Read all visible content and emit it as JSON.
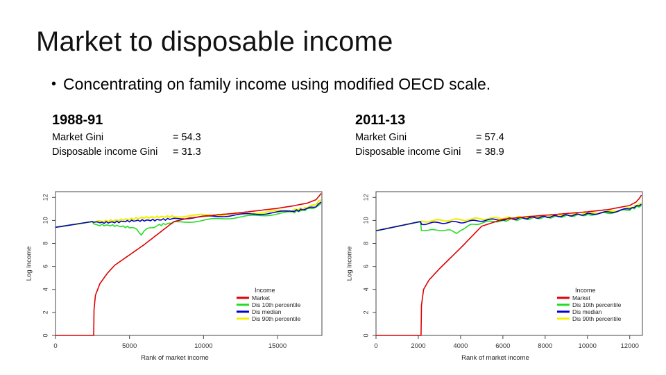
{
  "slide": {
    "title": "Market to disposable income",
    "bullet": "Concentrating on family income using modified OECD scale."
  },
  "panels": [
    {
      "period": "1988-91",
      "market_label": "Market Gini",
      "market_value": "= 54.3",
      "disposable_label": "Disposable income Gini",
      "disposable_value": "= 31.3"
    },
    {
      "period": "2011-13",
      "market_label": "Market Gini",
      "market_value": "= 57.4",
      "disposable_label": "Disposable income Gini",
      "disposable_value": "= 38.9"
    }
  ],
  "colors": {
    "market": "#dd0000",
    "p10": "#22dd22",
    "median": "#0000cc",
    "p90": "#f0f000"
  },
  "chart_data": [
    {
      "type": "line",
      "title": "",
      "xlabel": "Rank of market income",
      "ylabel": "Log Income",
      "xlim": [
        0,
        18000
      ],
      "ylim": [
        0,
        12.5
      ],
      "x_ticks": [
        0,
        5000,
        10000,
        15000
      ],
      "x_tick_labels": [
        "0",
        "5000",
        "10000",
        "15000"
      ],
      "y_ticks": [
        0,
        2,
        4,
        6,
        8,
        10,
        12
      ],
      "y_tick_labels": [
        "0",
        "2",
        "4",
        "6",
        "8",
        "10",
        "12"
      ],
      "legend_title": "Income",
      "legend_position": "bottom-right",
      "market_zero_until": 2600,
      "series": [
        {
          "name": "Market",
          "color_key": "market",
          "x": [
            0,
            2580,
            2600,
            2700,
            3000,
            3500,
            4000,
            5000,
            6000,
            7000,
            8000,
            9000,
            10000,
            11000,
            12000,
            13000,
            14000,
            15000,
            16000,
            17000,
            17600,
            17800,
            17950
          ],
          "y": [
            0,
            0,
            2.2,
            3.5,
            4.5,
            5.4,
            6.1,
            7.0,
            7.9,
            8.9,
            9.9,
            10.2,
            10.35,
            10.5,
            10.6,
            10.75,
            10.9,
            11.05,
            11.25,
            11.5,
            11.8,
            12.1,
            12.35
          ]
        },
        {
          "name": "Dis 10th percentile",
          "color_key": "p10",
          "x": [
            0,
            2500,
            2600,
            3000,
            4000,
            5000,
            5500,
            5800,
            6000,
            6500,
            7000,
            8000,
            10000,
            12000,
            14000,
            16000,
            17000,
            17600,
            17950
          ],
          "y": [
            9.4,
            9.9,
            9.6,
            9.6,
            9.55,
            9.4,
            9.2,
            8.8,
            9.1,
            9.4,
            9.6,
            9.8,
            10.0,
            10.25,
            10.45,
            10.7,
            10.95,
            11.2,
            11.5
          ]
        },
        {
          "name": "Dis median",
          "color_key": "median",
          "x": [
            0,
            2500,
            2600,
            3000,
            4000,
            5000,
            6000,
            7000,
            8000,
            10000,
            12000,
            14000,
            16000,
            17000,
            17600,
            17950
          ],
          "y": [
            9.4,
            9.9,
            9.8,
            9.8,
            9.85,
            9.95,
            10.0,
            10.05,
            10.15,
            10.3,
            10.45,
            10.6,
            10.8,
            11.0,
            11.25,
            11.6
          ]
        },
        {
          "name": "Dis 90th percentile",
          "color_key": "p90",
          "x": [
            0,
            2500,
            2600,
            3000,
            4000,
            5000,
            6000,
            7000,
            8000,
            10000,
            12000,
            14000,
            16000,
            17000,
            17600,
            17950
          ],
          "y": [
            9.4,
            9.9,
            9.85,
            9.9,
            10.0,
            10.1,
            10.25,
            10.3,
            10.35,
            10.45,
            10.55,
            10.7,
            10.9,
            11.1,
            11.4,
            11.8
          ]
        }
      ]
    },
    {
      "type": "line",
      "title": "",
      "xlabel": "Rank of market income",
      "ylabel": "Log Income",
      "xlim": [
        0,
        12600
      ],
      "ylim": [
        0,
        12.5
      ],
      "x_ticks": [
        0,
        2000,
        4000,
        6000,
        8000,
        10000,
        12000
      ],
      "x_tick_labels": [
        "0",
        "2000",
        "4000",
        "6000",
        "8000",
        "10000",
        "12000"
      ],
      "y_ticks": [
        0,
        2,
        4,
        6,
        8,
        10,
        12
      ],
      "y_tick_labels": [
        "0",
        "2",
        "4",
        "6",
        "8",
        "10",
        "12"
      ],
      "legend_title": "Income",
      "legend_position": "bottom-right",
      "market_zero_until": 2150,
      "series": [
        {
          "name": "Market",
          "color_key": "market",
          "x": [
            0,
            2130,
            2150,
            2250,
            2500,
            3000,
            3500,
            4000,
            5000,
            6000,
            7000,
            8000,
            9000,
            10000,
            11000,
            12000,
            12300,
            12450,
            12550
          ],
          "y": [
            0,
            0,
            2.6,
            4.0,
            4.8,
            5.8,
            6.7,
            7.6,
            9.5,
            10.1,
            10.3,
            10.45,
            10.6,
            10.75,
            10.95,
            11.3,
            11.6,
            11.9,
            12.2
          ]
        },
        {
          "name": "Dis 10th percentile",
          "color_key": "p10",
          "x": [
            0,
            2100,
            2150,
            2500,
            3000,
            3500,
            3800,
            4000,
            4200,
            4500,
            5000,
            6000,
            8000,
            10000,
            11000,
            12000,
            12550
          ],
          "y": [
            9.1,
            9.9,
            9.2,
            9.1,
            9.2,
            9.1,
            8.9,
            9.2,
            9.3,
            9.6,
            9.8,
            10.0,
            10.25,
            10.5,
            10.65,
            10.95,
            11.3
          ]
        },
        {
          "name": "Dis median",
          "color_key": "median",
          "x": [
            0,
            2100,
            2150,
            2500,
            3000,
            4000,
            5000,
            6000,
            8000,
            10000,
            11000,
            12000,
            12550
          ],
          "y": [
            9.1,
            9.9,
            9.7,
            9.75,
            9.8,
            9.85,
            10.0,
            10.1,
            10.3,
            10.55,
            10.7,
            11.0,
            11.4
          ]
        },
        {
          "name": "Dis 90th percentile",
          "color_key": "p90",
          "x": [
            0,
            2100,
            2150,
            2500,
            3000,
            4000,
            5000,
            6000,
            8000,
            10000,
            11000,
            12000,
            12550
          ],
          "y": [
            9.1,
            9.9,
            9.9,
            9.95,
            10.0,
            10.05,
            10.15,
            10.2,
            10.35,
            10.6,
            10.75,
            11.05,
            11.5
          ]
        }
      ]
    }
  ]
}
